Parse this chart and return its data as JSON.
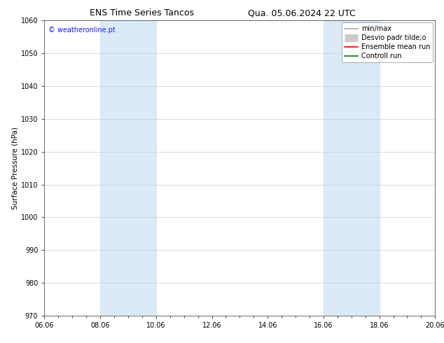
{
  "title_left": "ENS Time Series Tancos",
  "title_right": "Qua. 05.06.2024 22 UTC",
  "ylabel": "Surface Pressure (hPa)",
  "watermark": "© weatheronline.pt",
  "ylim": [
    970,
    1060
  ],
  "yticks": [
    970,
    980,
    990,
    1000,
    1010,
    1020,
    1030,
    1040,
    1050,
    1060
  ],
  "x_labels": [
    "06.06",
    "08.06",
    "10.06",
    "12.06",
    "14.06",
    "16.06",
    "18.06",
    "20.06"
  ],
  "x_positions": [
    0,
    2,
    4,
    6,
    8,
    10,
    12,
    14
  ],
  "shaded_regions": [
    {
      "xmin": 2,
      "xmax": 4
    },
    {
      "xmin": 10,
      "xmax": 12
    }
  ],
  "shaded_color": "#daeaf7",
  "legend_items": [
    {
      "label": "min/max",
      "color": "#aaaaaa",
      "linewidth": 1.2,
      "linestyle": "-"
    },
    {
      "label": "Desvio padr tilde;o",
      "color": "#cccccc",
      "linewidth": 8,
      "linestyle": "-"
    },
    {
      "label": "Ensemble mean run",
      "color": "#ff0000",
      "linewidth": 1.2,
      "linestyle": "-"
    },
    {
      "label": "Controll run",
      "color": "#008000",
      "linewidth": 1.2,
      "linestyle": "-"
    }
  ],
  "bg_color": "#ffffff",
  "watermark_color": "#1a1aff",
  "title_fontsize": 9,
  "axis_fontsize": 7.5,
  "tick_fontsize": 7,
  "legend_fontsize": 7
}
